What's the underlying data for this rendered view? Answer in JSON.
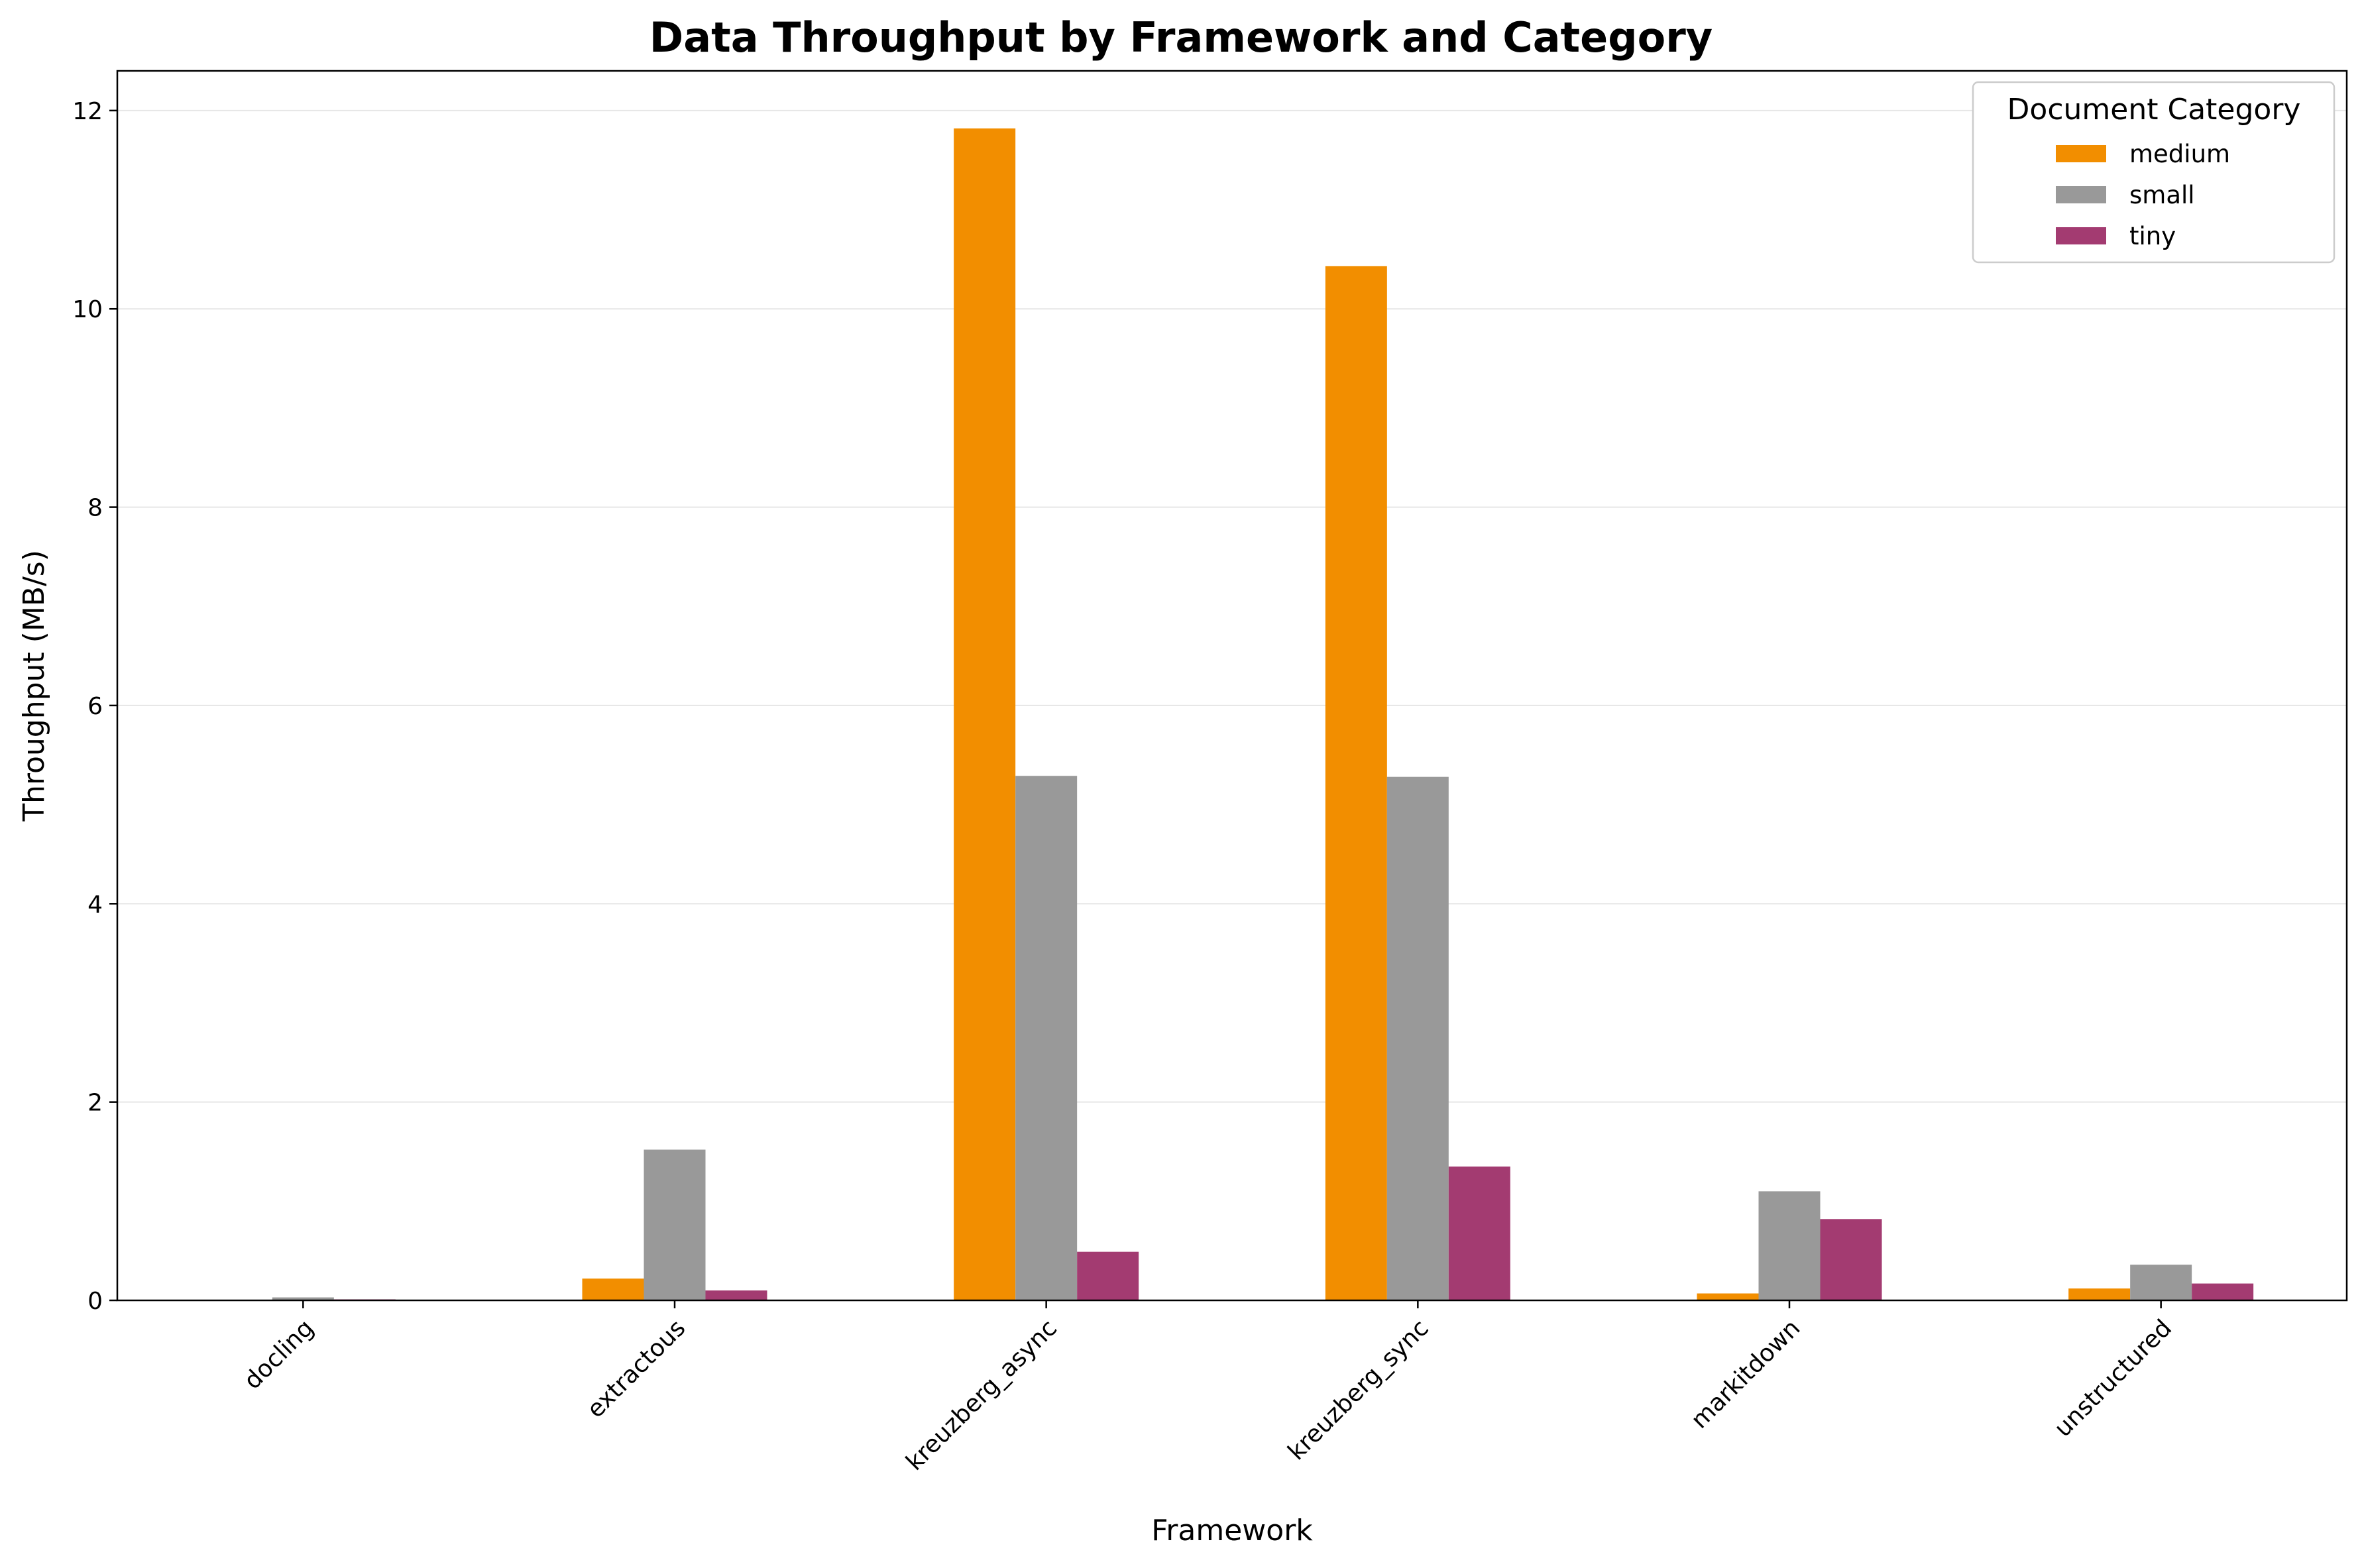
{
  "chart_data": {
    "type": "bar",
    "title": "Data Throughput by Framework and Category",
    "xlabel": "Framework",
    "ylabel": "Throughput (MB/s)",
    "categories": [
      "docling",
      "extractous",
      "kreuzberg_async",
      "kreuzberg_sync",
      "markitdown",
      "unstructured"
    ],
    "series": [
      {
        "name": "medium",
        "color": "#f28e00",
        "values": [
          0,
          0.22,
          11.82,
          10.43,
          0.07,
          0.12
        ]
      },
      {
        "name": "small",
        "color": "#999999",
        "values": [
          0.03,
          1.52,
          5.29,
          5.28,
          1.1,
          0.36
        ]
      },
      {
        "name": "tiny",
        "color": "#a33b71",
        "values": [
          0.01,
          0.1,
          0.49,
          1.35,
          0.82,
          0.17
        ]
      }
    ],
    "ylim": [
      0,
      12.4
    ],
    "yticks": [
      0,
      2,
      4,
      6,
      8,
      10,
      12
    ],
    "grid": "horizontal",
    "legend": {
      "title": "Document Category",
      "placement": "top-right"
    }
  }
}
